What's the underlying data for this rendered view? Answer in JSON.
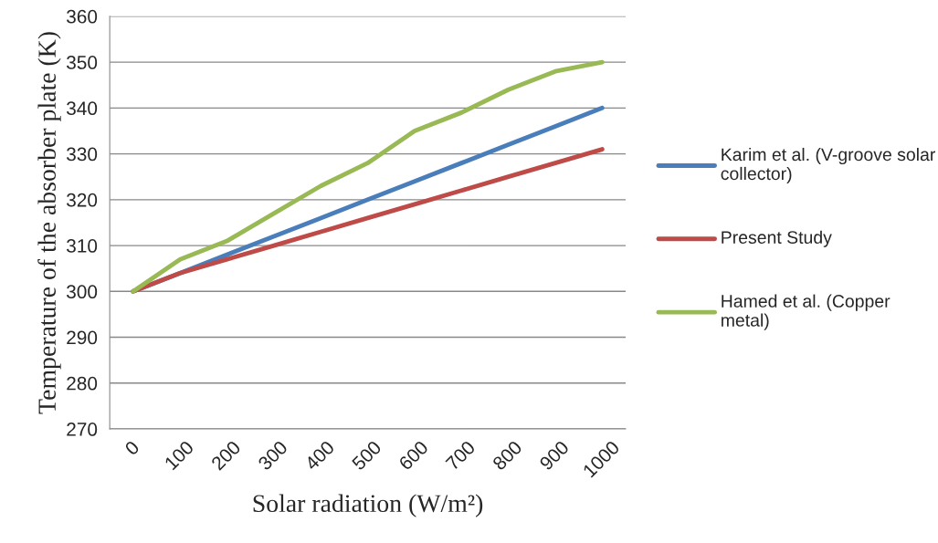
{
  "chart_data": {
    "type": "line",
    "xlabel": "Solar radiation (W/m²)",
    "ylabel": "Temperature of the absorber plate (K)",
    "categories": [
      "0",
      "100",
      "200",
      "300",
      "400",
      "500",
      "600",
      "700",
      "800",
      "900",
      "1000"
    ],
    "series": [
      {
        "name": "Karim et al. (V-groove solar collector)",
        "color": "#4a7ebb",
        "values": [
          300,
          304,
          308,
          312,
          316,
          320,
          324,
          328,
          332,
          336,
          340
        ]
      },
      {
        "name": "Present Study",
        "color": "#be4b48",
        "values": [
          300,
          304,
          307,
          310,
          313,
          316,
          319,
          322,
          325,
          328,
          331
        ]
      },
      {
        "name": "Hamed et al. (Copper metal)",
        "color": "#98b954",
        "values": [
          300,
          307,
          311,
          317,
          323,
          328,
          335,
          339,
          344,
          348,
          350
        ]
      }
    ],
    "ylim": [
      270,
      360
    ],
    "yticks": [
      270,
      280,
      290,
      300,
      310,
      320,
      330,
      340,
      350,
      360
    ],
    "grid": "y",
    "legend": "right",
    "marker": "none",
    "line_style": "solid"
  }
}
